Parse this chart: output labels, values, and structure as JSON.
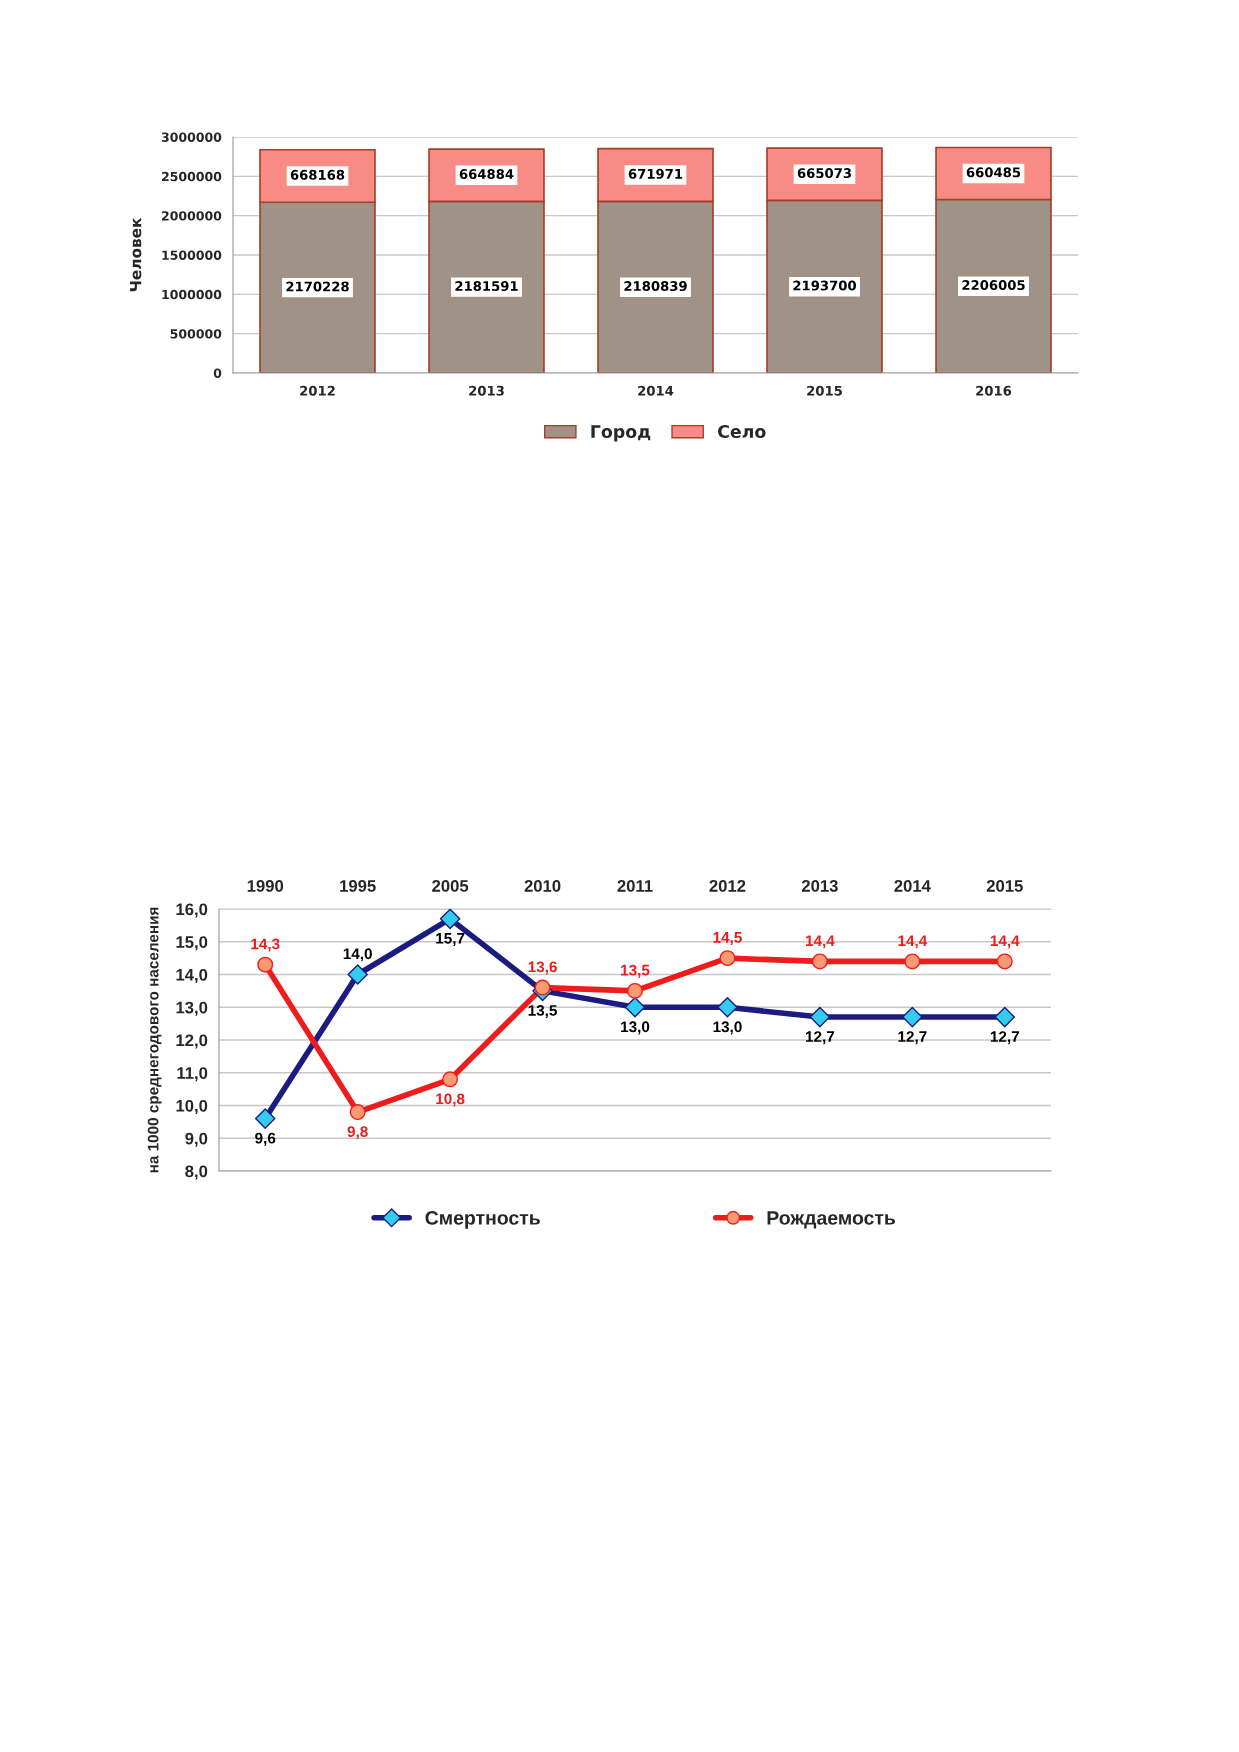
{
  "chart_data": [
    {
      "type": "bar",
      "stacked": true,
      "ylabel": "Человек",
      "categories": [
        "2012",
        "2013",
        "2014",
        "2015",
        "2016"
      ],
      "series": [
        {
          "name": "Город",
          "color": "#a09286",
          "values": [
            2170228,
            2181591,
            2180839,
            2193700,
            2206005
          ]
        },
        {
          "name": "Село",
          "color": "#f98b86",
          "values": [
            668168,
            664884,
            671971,
            665073,
            660485
          ]
        }
      ],
      "ylim": [
        0,
        3000000
      ],
      "yticks": [
        0,
        500000,
        1000000,
        1500000,
        2000000,
        2500000,
        3000000
      ],
      "grid": "y",
      "legend": "bottom",
      "data_labels": true
    },
    {
      "type": "line",
      "ylabel": "на 1000 среднегодового населения",
      "categories": [
        "1990",
        "1995",
        "2005",
        "2010",
        "2011",
        "2012",
        "2013",
        "2014",
        "2015"
      ],
      "series": [
        {
          "name": "Смертность",
          "color": "#1c1c80",
          "colors": [
            "#33ccee",
            "#33ccee",
            "#33ccee",
            "#33ccee",
            "#33ccee",
            "#33ccee",
            "#33ccee",
            "#33ccee",
            "#33ccee"
          ],
          "marker": "diamond",
          "values": [
            9.6,
            14.0,
            15.7,
            13.5,
            13.0,
            13.0,
            12.7,
            12.7,
            12.7
          ],
          "value_labels": [
            "9,6",
            "14,0",
            "15,7",
            "13,5",
            "13,0",
            "13,0",
            "12,7",
            "12,7",
            "12,7"
          ]
        },
        {
          "name": "Рождаемость",
          "color": "#ee1c1c",
          "colors": [
            "#f99a72",
            "#f99a72",
            "#f99a72",
            "#f99a72",
            "#f99a72",
            "#f99a72",
            "#f99a72",
            "#f99a72",
            "#f99a72"
          ],
          "marker": "circle",
          "values": [
            14.3,
            9.8,
            10.8,
            13.6,
            13.5,
            14.5,
            14.4,
            14.4,
            14.4
          ],
          "value_labels": [
            "14,3",
            "9,8",
            "10,8",
            "13,6",
            "13,5",
            "14,5",
            "14,4",
            "14,4",
            "14,4"
          ]
        }
      ],
      "ylim": [
        8,
        16
      ],
      "yticks": [
        {
          "value": 8,
          "label": "8,0"
        },
        {
          "value": 9,
          "label": "9,0"
        },
        {
          "value": 10,
          "label": "10,0"
        },
        {
          "value": 11,
          "label": "11,0"
        },
        {
          "value": 12,
          "label": "12,0"
        },
        {
          "value": 13,
          "label": "13,0"
        },
        {
          "value": 14,
          "label": "14,0"
        },
        {
          "value": 15,
          "label": "15,0"
        },
        {
          "value": 16,
          "label": "16,0"
        }
      ],
      "grid": "y",
      "legend": "bottom"
    }
  ]
}
